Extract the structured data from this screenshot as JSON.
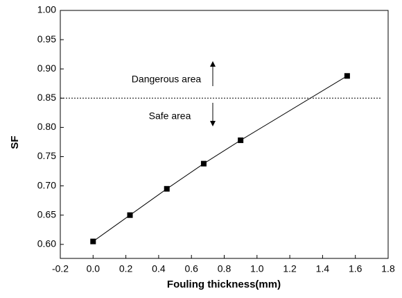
{
  "chart_data": {
    "type": "line",
    "x_label": "Fouling thickness(mm)",
    "y_label": "SF",
    "x": [
      0,
      0.225,
      0.45,
      0.675,
      0.9,
      1.55
    ],
    "series": [
      {
        "values": [
          0.605,
          0.65,
          0.695,
          0.738,
          0.778,
          0.888
        ],
        "color": "#000000"
      }
    ],
    "xlim": [
      -0.2,
      1.8
    ],
    "xticks": [
      -0.2,
      {
        "value": 0,
        "label": "0.0"
      },
      0.2,
      0.4,
      0.6,
      0.8,
      {
        "value": 1,
        "label": "1.0"
      },
      1.2,
      1.4,
      1.6,
      1.8
    ],
    "ylim": [
      0.576,
      1.0
    ],
    "yticks": [
      {
        "value": 0.6,
        "label": "0.60"
      },
      0.65,
      {
        "value": 0.7,
        "label": "0.70"
      },
      0.75,
      {
        "value": 0.8,
        "label": "0.80"
      },
      0.85,
      {
        "value": 0.9,
        "label": "0.90"
      },
      0.95,
      {
        "value": 1.0,
        "label": "1.00"
      }
    ],
    "threshold": 0.85,
    "annotations": [
      "Dangerous area",
      "Safe area"
    ]
  }
}
